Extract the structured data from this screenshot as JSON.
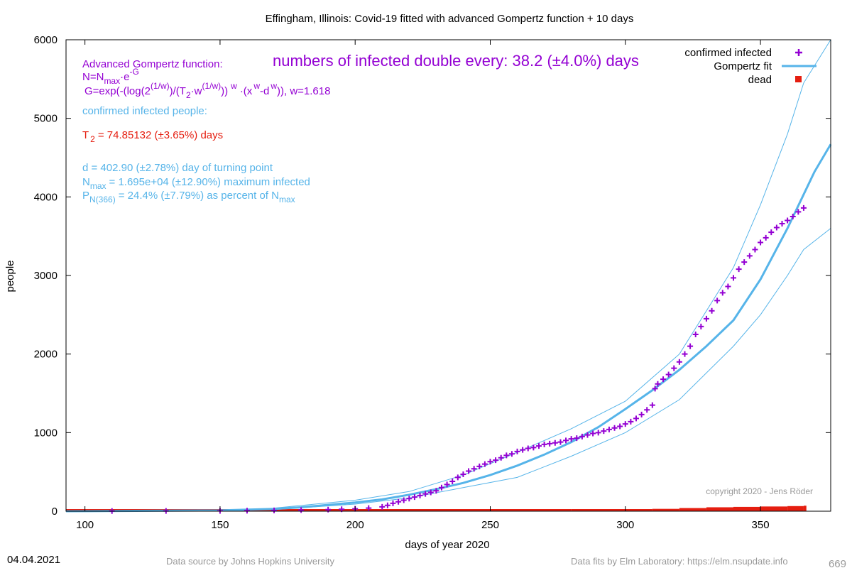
{
  "chart_data": {
    "type": "scatter",
    "title": "Effingham,  Illinois: Covid-19 fitted with advanced Gompertz function + 10 days",
    "xlabel": "days of year 2020",
    "ylabel": "people",
    "xlim": [
      93,
      376
    ],
    "ylim": [
      0,
      6000
    ],
    "x_ticks": [
      100,
      150,
      200,
      250,
      300,
      350
    ],
    "y_ticks": [
      0,
      1000,
      2000,
      3000,
      4000,
      5000,
      6000
    ],
    "grid": false,
    "legend_position": "top-right",
    "colors": {
      "confirmed": "#9400d3",
      "fit": "#56b4e9",
      "dead": "#e51e10",
      "formula": "#9400d3",
      "info": "#56b4e9",
      "t2": "#e51e10",
      "footer": "#999999"
    },
    "legend": [
      {
        "label": "confirmed infected",
        "marker": "plus",
        "series": "confirmed"
      },
      {
        "label": "Gompertz fit",
        "marker": "line",
        "series": "fit"
      },
      {
        "label": "dead",
        "marker": "square",
        "series": "dead"
      }
    ],
    "series": [
      {
        "name": "confirmed infected",
        "key": "confirmed",
        "style": "points",
        "points": [
          [
            110,
            2
          ],
          [
            130,
            3
          ],
          [
            150,
            5
          ],
          [
            160,
            7
          ],
          [
            170,
            10
          ],
          [
            180,
            15
          ],
          [
            190,
            20
          ],
          [
            195,
            25
          ],
          [
            200,
            30
          ],
          [
            205,
            40
          ],
          [
            210,
            55
          ],
          [
            212,
            75
          ],
          [
            214,
            100
          ],
          [
            216,
            120
          ],
          [
            218,
            140
          ],
          [
            220,
            160
          ],
          [
            222,
            180
          ],
          [
            224,
            200
          ],
          [
            226,
            220
          ],
          [
            228,
            240
          ],
          [
            230,
            260
          ],
          [
            232,
            300
          ],
          [
            234,
            340
          ],
          [
            236,
            380
          ],
          [
            238,
            430
          ],
          [
            240,
            470
          ],
          [
            242,
            510
          ],
          [
            244,
            540
          ],
          [
            246,
            570
          ],
          [
            248,
            600
          ],
          [
            250,
            630
          ],
          [
            252,
            650
          ],
          [
            254,
            680
          ],
          [
            256,
            710
          ],
          [
            258,
            730
          ],
          [
            260,
            760
          ],
          [
            262,
            780
          ],
          [
            264,
            800
          ],
          [
            266,
            810
          ],
          [
            268,
            830
          ],
          [
            270,
            850
          ],
          [
            272,
            860
          ],
          [
            274,
            870
          ],
          [
            276,
            880
          ],
          [
            278,
            900
          ],
          [
            280,
            920
          ],
          [
            282,
            930
          ],
          [
            284,
            950
          ],
          [
            286,
            970
          ],
          [
            288,
            990
          ],
          [
            290,
            1000
          ],
          [
            292,
            1020
          ],
          [
            294,
            1040
          ],
          [
            296,
            1060
          ],
          [
            298,
            1080
          ],
          [
            300,
            1110
          ],
          [
            302,
            1140
          ],
          [
            304,
            1180
          ],
          [
            306,
            1230
          ],
          [
            308,
            1290
          ],
          [
            310,
            1350
          ],
          [
            311,
            1560
          ],
          [
            312,
            1620
          ],
          [
            314,
            1680
          ],
          [
            316,
            1740
          ],
          [
            318,
            1820
          ],
          [
            320,
            1900
          ],
          [
            322,
            2000
          ],
          [
            324,
            2100
          ],
          [
            326,
            2250
          ],
          [
            328,
            2350
          ],
          [
            330,
            2450
          ],
          [
            332,
            2550
          ],
          [
            334,
            2680
          ],
          [
            336,
            2780
          ],
          [
            338,
            2860
          ],
          [
            340,
            2970
          ],
          [
            342,
            3080
          ],
          [
            344,
            3170
          ],
          [
            346,
            3250
          ],
          [
            348,
            3330
          ],
          [
            350,
            3420
          ],
          [
            352,
            3480
          ],
          [
            354,
            3550
          ],
          [
            356,
            3610
          ],
          [
            358,
            3660
          ],
          [
            360,
            3700
          ],
          [
            362,
            3750
          ],
          [
            364,
            3810
          ],
          [
            366,
            3860
          ]
        ]
      },
      {
        "name": "Gompertz fit",
        "key": "fit",
        "style": "line",
        "points": [
          [
            93,
            0
          ],
          [
            150,
            10
          ],
          [
            170,
            30
          ],
          [
            180,
            50
          ],
          [
            190,
            80
          ],
          [
            200,
            110
          ],
          [
            210,
            150
          ],
          [
            220,
            210
          ],
          [
            230,
            280
          ],
          [
            240,
            360
          ],
          [
            250,
            460
          ],
          [
            260,
            580
          ],
          [
            270,
            720
          ],
          [
            280,
            880
          ],
          [
            290,
            1070
          ],
          [
            300,
            1300
          ],
          [
            310,
            1540
          ],
          [
            320,
            1800
          ],
          [
            330,
            2100
          ],
          [
            340,
            2430
          ],
          [
            350,
            2950
          ],
          [
            360,
            3600
          ],
          [
            370,
            4320
          ],
          [
            376,
            4670
          ]
        ]
      },
      {
        "name": "",
        "key": "fit_upper",
        "style": "thin",
        "points": [
          [
            170,
            40
          ],
          [
            200,
            140
          ],
          [
            220,
            250
          ],
          [
            240,
            460
          ],
          [
            260,
            750
          ],
          [
            280,
            1050
          ],
          [
            300,
            1400
          ],
          [
            320,
            2000
          ],
          [
            340,
            3100
          ],
          [
            350,
            3900
          ],
          [
            360,
            4800
          ],
          [
            366,
            5450
          ],
          [
            376,
            6000
          ]
        ]
      },
      {
        "name": "",
        "key": "fit_lower",
        "style": "thin",
        "points": [
          [
            170,
            20
          ],
          [
            200,
            90
          ],
          [
            220,
            170
          ],
          [
            240,
            300
          ],
          [
            260,
            430
          ],
          [
            280,
            700
          ],
          [
            300,
            1000
          ],
          [
            320,
            1420
          ],
          [
            340,
            2100
          ],
          [
            350,
            2500
          ],
          [
            360,
            3000
          ],
          [
            366,
            3330
          ],
          [
            376,
            3600
          ]
        ]
      },
      {
        "name": "dead",
        "key": "dead",
        "style": "bars",
        "points": [
          [
            93,
            0
          ],
          [
            200,
            1
          ],
          [
            250,
            5
          ],
          [
            280,
            10
          ],
          [
            300,
            15
          ],
          [
            310,
            30
          ],
          [
            320,
            40
          ],
          [
            330,
            50
          ],
          [
            340,
            55
          ],
          [
            350,
            60
          ],
          [
            360,
            65
          ],
          [
            366,
            70
          ]
        ]
      }
    ],
    "annotations": {
      "formula_title": "Advanced Gompertz function:",
      "formula_n_base": "N=N",
      "formula_n_sub": "max",
      "formula_n_rest": "·e",
      "formula_n_sup": "-G",
      "formula_g": "G=exp(-(log(2",
      "formula_g_sup1": "(1/w)",
      "formula_g_mid": ")/(T",
      "formula_g_sub2": "2",
      "formula_g_mid2": "·w",
      "formula_g_sup2": "(1/w)",
      "formula_g_mid3": "))",
      "formula_g_supw": "w",
      "formula_g_mid4": "·(x",
      "formula_g_supw2": "w",
      "formula_g_mid5": "-d",
      "formula_g_supw3": "w",
      "formula_g_end": ")), w=1.618",
      "doubling": "numbers of infected double every: 38.2 (±4.0%) days",
      "confirmed_heading": "confirmed infected people:",
      "t2_base": "T",
      "t2_sub": "2",
      "t2_rest": "= 74.85132 (±3.65%) days",
      "d_line": "d = 402.90 (±2.78%) day of turning point",
      "nmax_base": "N",
      "nmax_sub": "max",
      "nmax_rest": "= 1.695e+04 (±12.90%) maximum infected",
      "p_base": "P",
      "p_sub": "N(366)",
      "p_rest": "= 24.4% (±7.79%) as percent of N",
      "p_sub2": "max",
      "copyright": "copyright 2020 - Jens Röder"
    }
  },
  "footer": {
    "date": "04.04.2021",
    "source": "Data source by Johns Hopkins University",
    "fits": "Data fits by Elm Laboratory: https://elm.nsupdate.info",
    "number": "669"
  }
}
